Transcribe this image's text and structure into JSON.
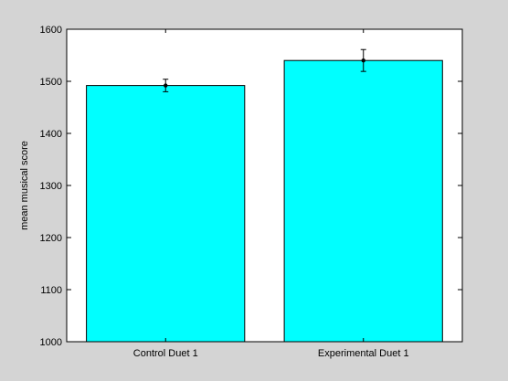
{
  "chart_data": {
    "type": "bar",
    "title": "",
    "xlabel": "",
    "ylabel": "mean musical score",
    "categories": [
      "Control Duet 1",
      "Experimental Duet 1"
    ],
    "values": [
      1492,
      1540
    ],
    "error_low": [
      1480,
      1519
    ],
    "error_high": [
      1504,
      1561
    ],
    "ylim": [
      1000,
      1600
    ],
    "yticks": [
      1000,
      1100,
      1200,
      1300,
      1400,
      1500,
      1600
    ],
    "yticklabels": [
      "1000",
      "1100",
      "1200",
      "1300",
      "1400",
      "1500",
      "1600"
    ],
    "grid": false,
    "legend": "none",
    "bar_color": "#00ffff",
    "background_color": "#d4d4d4",
    "plot_background_color": "#ffffff"
  }
}
